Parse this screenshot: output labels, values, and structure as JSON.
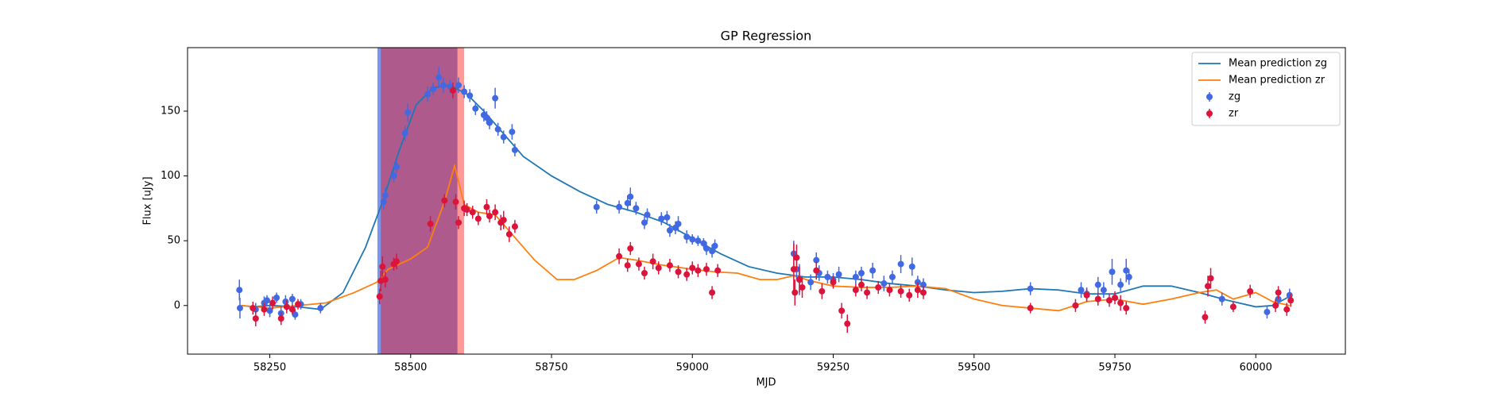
{
  "chart_data": {
    "type": "scatter",
    "title": "GP Regression",
    "xlabel": "MJD",
    "ylabel": "Flux [uJy]",
    "xlim": [
      58104,
      60159
    ],
    "ylim": [
      -37.5,
      199
    ],
    "xticks": [
      58250,
      58500,
      58750,
      59000,
      59250,
      59500,
      59750,
      60000
    ],
    "yticks": [
      0,
      50,
      100,
      150
    ],
    "legend": "upper right",
    "spans": [
      {
        "color": "#4169e1",
        "alpha": 0.7,
        "xmin": 58441,
        "xmax": 58583
      },
      {
        "color": "#ff0000",
        "alpha": 0.4,
        "xmin": 58447,
        "xmax": 58595
      }
    ],
    "series": [
      {
        "name": "Mean prediction zg",
        "kind": "line",
        "color": "#1f77b4",
        "x": [
          58200,
          58220,
          58250,
          58300,
          58340,
          58380,
          58420,
          58450,
          58480,
          58510,
          58540,
          58570,
          58600,
          58630,
          58660,
          58700,
          58750,
          58800,
          58850,
          58900,
          58950,
          59000,
          59050,
          59100,
          59150,
          59200,
          59250,
          59300,
          59350,
          59400,
          59450,
          59500,
          59550,
          59600,
          59650,
          59700,
          59750,
          59800,
          59850,
          59900,
          59950,
          60000,
          60030,
          60060
        ],
        "values": [
          0,
          -1,
          0,
          -1,
          -3,
          10,
          45,
          80,
          120,
          155,
          168,
          170,
          163,
          150,
          135,
          115,
          100,
          88,
          78,
          72,
          64,
          52,
          40,
          30,
          25,
          22,
          22,
          20,
          17,
          15,
          12,
          10,
          11,
          13,
          12,
          9,
          9,
          15,
          15,
          10,
          4,
          -1,
          0,
          7
        ]
      },
      {
        "name": "Mean prediction zr",
        "kind": "line",
        "color": "#ff7f0e",
        "x": [
          58200,
          58250,
          58300,
          58350,
          58400,
          58440,
          58460,
          58500,
          58530,
          58560,
          58578,
          58595,
          58620,
          58650,
          58680,
          58720,
          58760,
          58790,
          58830,
          58870,
          58900,
          58950,
          59000,
          59040,
          59080,
          59120,
          59150,
          59180,
          59210,
          59250,
          59300,
          59350,
          59400,
          59450,
          59500,
          59550,
          59600,
          59650,
          59700,
          59750,
          59800,
          59850,
          59900,
          59930,
          59960,
          60000,
          60030,
          60060
        ],
        "values": [
          0,
          -2,
          0,
          2,
          10,
          18,
          28,
          36,
          45,
          80,
          108,
          78,
          72,
          70,
          55,
          35,
          20,
          20,
          27,
          37,
          35,
          31,
          28,
          26,
          25,
          20,
          20,
          23,
          19,
          15,
          14,
          14,
          15,
          13,
          5,
          0,
          -2,
          -4,
          3,
          5,
          1,
          5,
          10,
          12,
          5,
          10,
          3,
          0
        ]
      },
      {
        "name": "zg",
        "kind": "errorbar",
        "color": "#4169e1",
        "x": [
          58196,
          58197,
          58225,
          58240,
          58245,
          58250,
          58262,
          58270,
          58278,
          58290,
          58295,
          58305,
          58340,
          58452,
          58455,
          58470,
          58475,
          58490,
          58495,
          58530,
          58540,
          58550,
          58558,
          58570,
          58585,
          58595,
          58605,
          58615,
          58630,
          58635,
          58640,
          58650,
          58655,
          58665,
          58680,
          58685,
          58830,
          58870,
          58885,
          58890,
          58900,
          58915,
          58920,
          58945,
          58955,
          58960,
          58970,
          58975,
          58990,
          59000,
          59010,
          59020,
          59025,
          59035,
          59040,
          59180,
          59185,
          59190,
          59210,
          59220,
          59225,
          59240,
          59250,
          59260,
          59290,
          59300,
          59320,
          59340,
          59355,
          59370,
          59390,
          59400,
          59410,
          59600,
          59690,
          59700,
          59720,
          59730,
          59745,
          59760,
          59770,
          59775,
          59940,
          60020,
          60040,
          60060
        ],
        "values": [
          12,
          -2,
          -3,
          2,
          4,
          -4,
          6,
          -6,
          3,
          5,
          -7,
          1,
          -2,
          80,
          85,
          100,
          107,
          133,
          149,
          163,
          167,
          176,
          170,
          169,
          170,
          165,
          162,
          152,
          147,
          145,
          141,
          160,
          136,
          130,
          134,
          120,
          76,
          76,
          79,
          84,
          75,
          64,
          70,
          67,
          68,
          58,
          60,
          63,
          53,
          51,
          50,
          48,
          44,
          42,
          46,
          40,
          28,
          20,
          18,
          35,
          25,
          22,
          20,
          24,
          22,
          25,
          27,
          17,
          22,
          32,
          30,
          18,
          16,
          13,
          12,
          9,
          16,
          12,
          26,
          16,
          27,
          22,
          5,
          -5,
          5,
          8
        ],
        "errors": [
          8,
          8,
          5,
          5,
          4,
          5,
          4,
          6,
          5,
          4,
          4,
          4,
          4,
          6,
          6,
          5,
          5,
          6,
          7,
          6,
          5,
          8,
          6,
          5,
          6,
          5,
          5,
          5,
          5,
          5,
          5,
          8,
          5,
          5,
          6,
          5,
          5,
          5,
          6,
          7,
          5,
          5,
          5,
          5,
          5,
          5,
          5,
          6,
          5,
          4,
          4,
          4,
          5,
          5,
          5,
          10,
          8,
          12,
          6,
          6,
          6,
          5,
          5,
          6,
          5,
          5,
          6,
          6,
          5,
          7,
          7,
          5,
          5,
          5,
          6,
          5,
          6,
          6,
          10,
          5,
          9,
          6,
          5,
          5,
          5,
          5
        ]
      },
      {
        "name": "zr",
        "kind": "errorbar",
        "color": "#dc143c",
        "x": [
          58220,
          58225,
          58240,
          58255,
          58270,
          58280,
          58290,
          58300,
          58445,
          58447,
          58450,
          58455,
          58470,
          58475,
          58535,
          58560,
          58575,
          58580,
          58585,
          58595,
          58600,
          58610,
          58620,
          58635,
          58640,
          58650,
          58660,
          58665,
          58675,
          58685,
          58870,
          58885,
          58890,
          58905,
          58915,
          58930,
          58940,
          58960,
          58975,
          58990,
          59000,
          59010,
          59025,
          59035,
          59045,
          59180,
          59182,
          59185,
          59190,
          59195,
          59220,
          59230,
          59250,
          59265,
          59275,
          59290,
          59300,
          59310,
          59330,
          59350,
          59370,
          59385,
          59400,
          59410,
          59600,
          59680,
          59700,
          59720,
          59740,
          59750,
          59760,
          59770,
          59910,
          59915,
          59920,
          59960,
          59990,
          60035,
          60040,
          60055,
          60062
        ],
        "values": [
          -2,
          -10,
          -3,
          2,
          -10,
          -1,
          -3,
          1,
          7,
          19,
          30,
          20,
          32,
          34,
          63,
          81,
          166,
          80,
          64,
          75,
          74,
          72,
          67,
          76,
          69,
          72,
          64,
          66,
          55,
          61,
          38,
          31,
          44,
          32,
          25,
          34,
          29,
          31,
          26,
          24,
          29,
          27,
          28,
          10,
          27,
          28,
          10,
          37,
          20,
          14,
          27,
          11,
          18,
          -4,
          -14,
          12,
          16,
          10,
          14,
          12,
          11,
          8,
          12,
          10,
          -2,
          0,
          8,
          5,
          4,
          6,
          2,
          -2,
          -9,
          15,
          21,
          -1,
          11,
          0,
          10,
          -3,
          4
        ],
        "errors": [
          5,
          6,
          5,
          5,
          5,
          5,
          4,
          4,
          6,
          8,
          8,
          6,
          5,
          6,
          6,
          5,
          6,
          6,
          5,
          6,
          5,
          5,
          5,
          6,
          5,
          6,
          6,
          7,
          6,
          5,
          6,
          5,
          5,
          5,
          5,
          6,
          5,
          5,
          5,
          5,
          5,
          5,
          5,
          5,
          5,
          20,
          10,
          10,
          10,
          8,
          7,
          6,
          5,
          6,
          7,
          5,
          5,
          5,
          5,
          5,
          5,
          5,
          6,
          5,
          4,
          5,
          5,
          5,
          5,
          5,
          6,
          5,
          5,
          8,
          8,
          4,
          5,
          5,
          5,
          5,
          5
        ]
      }
    ]
  }
}
